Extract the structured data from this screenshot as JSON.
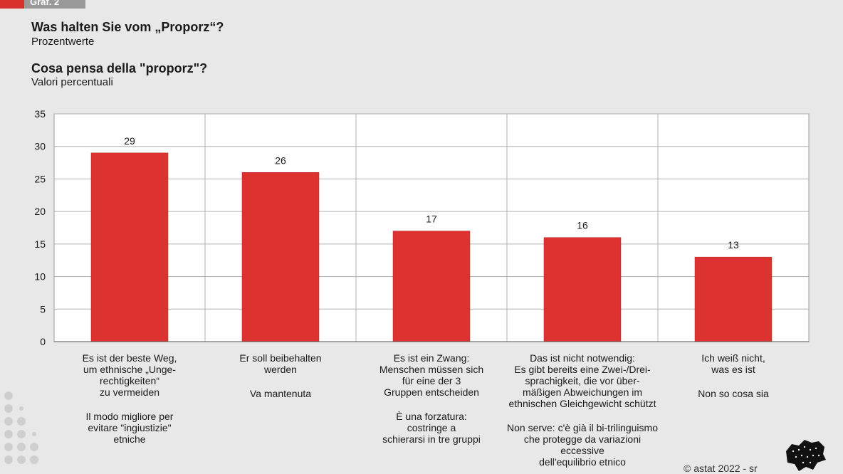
{
  "header": {
    "tag": "Graf. 2",
    "title_de": "Was halten Sie vom „Proporz“?",
    "subtitle_de": "Prozentwerte",
    "title_it": "Cosa pensa della \"proporz\"?",
    "subtitle_it": "Valori percentuali"
  },
  "footer": {
    "credit": "© astat 2022 - sr"
  },
  "colors": {
    "bar": "#dd3330",
    "background": "#e8e8e8",
    "plot": "#ffffff",
    "grid": "#b0b0b0"
  },
  "chart_data": {
    "type": "bar",
    "title": "Was halten Sie vom „Proporz“? / Cosa pensa della \"proporz\"?",
    "ylim": [
      0,
      35
    ],
    "yticks": [
      0,
      5,
      10,
      15,
      20,
      25,
      30,
      35
    ],
    "grid": true,
    "values": [
      29,
      26,
      17,
      16,
      13
    ],
    "categories": [
      {
        "de": "Es ist der beste Weg,\num ethnische „Unge-\nrechtigkeiten“\nzu vermeiden",
        "it": "Il modo migliore per\nevitare \"ingiustizie\"\netniche"
      },
      {
        "de": "Er soll beibehalten\nwerden",
        "it": "Va mantenuta"
      },
      {
        "de": "Es ist ein Zwang:\nMenschen müssen sich\nfür eine der 3\nGruppen entscheiden",
        "it": "È una forzatura:\ncostringe a\nschierarsi in tre gruppi"
      },
      {
        "de": "Das ist nicht notwendig:\nEs gibt bereits eine Zwei-/Drei-\nsprachigkeit, die vor über-\nmäßigen Abweichungen im\nethnischen Gleichgewicht schützt",
        "it": "Non serve: c'è già il bi-trilinguismo\nche protegge da variazioni eccessive\ndell'equilibrio etnico"
      },
      {
        "de": "Ich weiß nicht,\nwas es ist",
        "it": "Non so cosa sia"
      }
    ]
  }
}
